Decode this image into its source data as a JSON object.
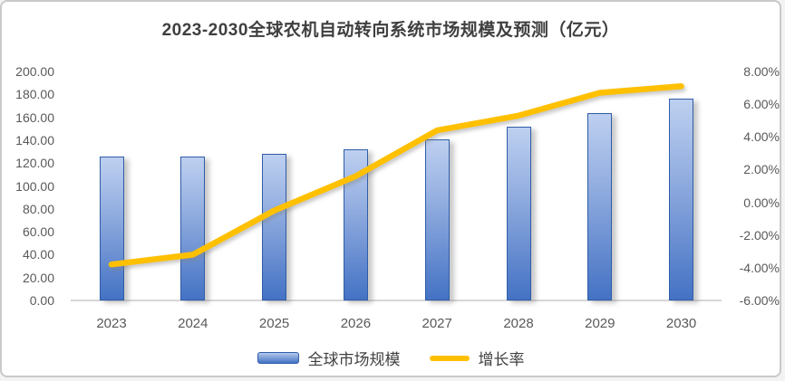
{
  "chart_data": {
    "type": "bar",
    "title": "2023-2030全球农机自动转向系统市场规模及预测（亿元）",
    "categories": [
      "2023",
      "2024",
      "2025",
      "2026",
      "2027",
      "2028",
      "2029",
      "2030"
    ],
    "series": [
      {
        "name": "全球市场规模",
        "type": "bar",
        "axis": "left",
        "unit": "亿元",
        "values": [
          126,
          126,
          128,
          132,
          141,
          152,
          164,
          176
        ]
      },
      {
        "name": "增长率",
        "type": "line",
        "axis": "right",
        "unit": "%",
        "values": [
          -3.8,
          -3.2,
          -0.5,
          1.6,
          4.4,
          5.3,
          6.7,
          7.1
        ]
      }
    ],
    "left_axis": {
      "min": 0,
      "max": 200,
      "tick_labels": [
        "200.00",
        "180.00",
        "160.00",
        "140.00",
        "120.00",
        "100.00",
        "80.00",
        "60.00",
        "40.00",
        "20.00",
        "0.00"
      ]
    },
    "right_axis": {
      "min": -6,
      "max": 8,
      "tick_labels": [
        "8.00%",
        "6.00%",
        "4.00%",
        "2.00%",
        "0.00%",
        "-2.00%",
        "-4.00%",
        "-6.00%"
      ]
    },
    "legend_position": "bottom",
    "grid": false,
    "colors": {
      "bar_fill_top": "#bed0f0",
      "bar_fill_bottom": "#4472c4",
      "bar_border": "#2f5da8",
      "line": "#ffc000",
      "axis_line": "#d6d6d6",
      "tick_text": "#595959",
      "title_text": "#3f3f3f",
      "legend_text": "#404040",
      "card_border": "#c9c9c9",
      "background": "#ffffff"
    }
  }
}
